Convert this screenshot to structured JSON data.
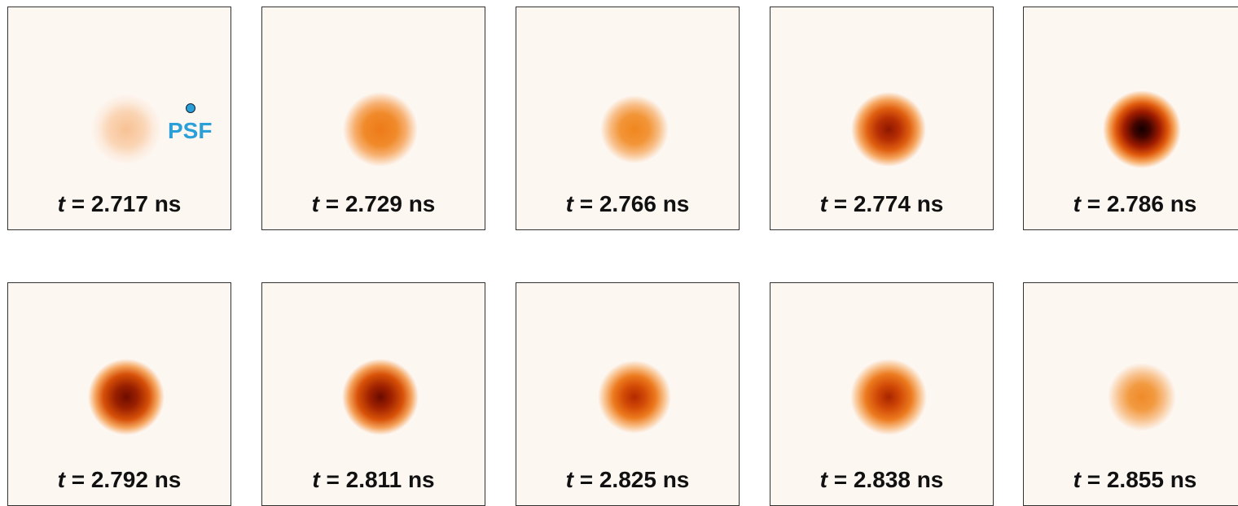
{
  "variable": "t",
  "relation": "=",
  "unit": "ns",
  "annotation": "PSF",
  "panels": [
    {
      "time": "2.717"
    },
    {
      "time": "2.729"
    },
    {
      "time": "2.766"
    },
    {
      "time": "2.774"
    },
    {
      "time": "2.786"
    },
    {
      "time": "2.792"
    },
    {
      "time": "2.811"
    },
    {
      "time": "2.825"
    },
    {
      "time": "2.838"
    },
    {
      "time": "2.855"
    }
  ]
}
